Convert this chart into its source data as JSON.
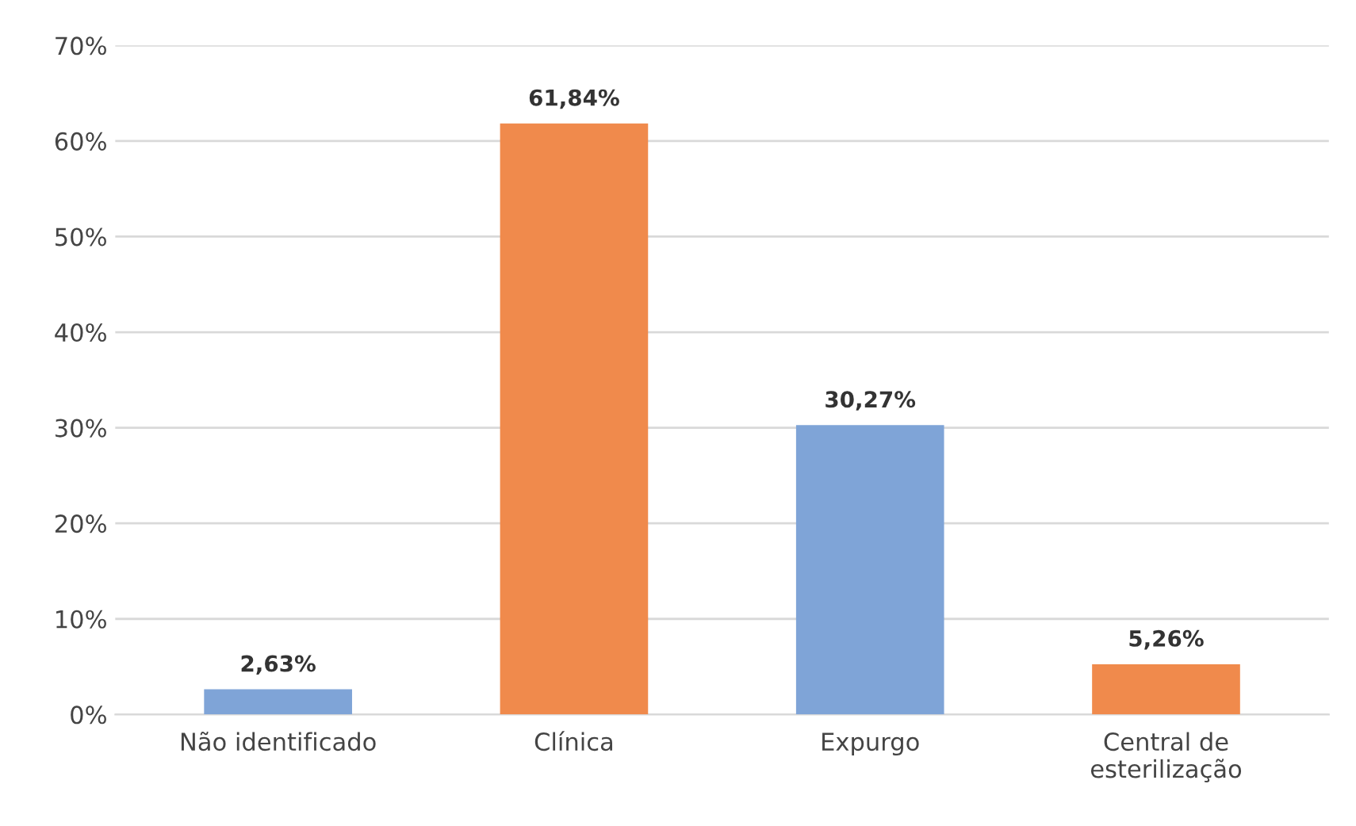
{
  "chart_data": {
    "type": "bar",
    "categories": [
      "Não identificado",
      "Clínica",
      "Expurgo",
      "Central de\nesterilização"
    ],
    "values": [
      2.63,
      61.84,
      30.27,
      5.26
    ],
    "colors": [
      "#7fa4d7",
      "#f08a4c",
      "#7fa4d7",
      "#f08a4c"
    ],
    "value_labels": [
      "2,63%",
      "61,84%",
      "30,27%",
      "5,26%"
    ],
    "ylim": [
      0,
      70
    ],
    "yticks": [
      {
        "value": 0,
        "label": "0%"
      },
      {
        "value": 10,
        "label": "10%"
      },
      {
        "value": 20,
        "label": "20%"
      },
      {
        "value": 30,
        "label": "30%"
      },
      {
        "value": 40,
        "label": "40%"
      },
      {
        "value": 50,
        "label": "50%"
      },
      {
        "value": 60,
        "label": "60%"
      },
      {
        "value": 70,
        "label": "70%"
      }
    ],
    "grid": "y"
  }
}
